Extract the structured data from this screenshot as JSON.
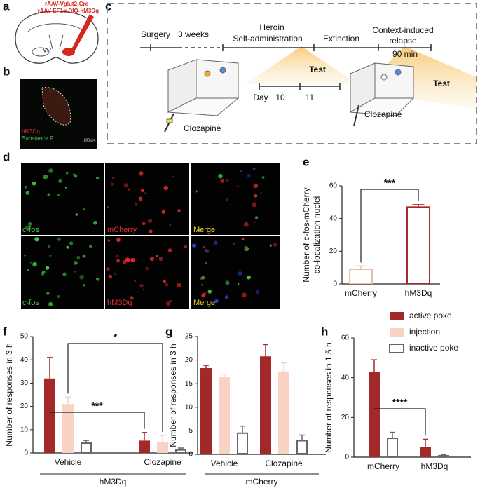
{
  "panel_labels": [
    "a",
    "b",
    "c",
    "d",
    "e",
    "f",
    "g",
    "h"
  ],
  "panel_a": {
    "virus": [
      "rAAV-Vglut2-Cre",
      "+rAAV-EF1α-DIO-hM3Dq"
    ],
    "region": "VP"
  },
  "panel_b": {
    "labels": [
      "hM3Dq",
      "Substance P"
    ],
    "scale": "200 μm"
  },
  "panel_c": {
    "timeline": [
      "Surgery",
      "3 weeks",
      "Heroin",
      "Self-administration",
      "Extinction",
      "Context-induced",
      "relapse",
      "90 min"
    ],
    "test_1": "Test",
    "day": "Day",
    "days": [
      "10",
      "11"
    ],
    "drug_1": "Clozapine",
    "test_2": "Test",
    "drug_2": "Clozapine"
  },
  "panel_d": {
    "rows": [
      [
        "c-fos",
        "mCherry",
        "Merge"
      ],
      [
        "c-fos",
        "hM3Dq",
        "Merge"
      ]
    ]
  },
  "chart_data": [
    {
      "type": "bar",
      "y_label": [
        "Number of c-fos-mCherry",
        "co-localization nuclei"
      ],
      "categories": [
        "mCherry",
        "hM3Dq"
      ],
      "values": [
        9,
        47
      ],
      "errors": [
        2,
        1.5
      ],
      "colors": [
        "#f0b9a4",
        "#a52a2a"
      ],
      "outline": true,
      "ylim": [
        0,
        60
      ],
      "yticks": [
        0,
        20,
        40,
        60
      ],
      "annotations": [
        "***"
      ]
    },
    {
      "type": "grouped_bar",
      "y_label": "Number of responses in 3 h",
      "x_label": "hM3Dq",
      "categories": [
        "Vehicle",
        "Clozapine"
      ],
      "series": [
        {
          "name": "active poke",
          "color": "#a3282a",
          "values": [
            32,
            5.3
          ],
          "errors": [
            9,
            3.5
          ]
        },
        {
          "name": "injection",
          "color": "#f8d3c4",
          "values": [
            21,
            4.5
          ],
          "errors": [
            3,
            3
          ]
        },
        {
          "name": "inactive poke",
          "color": "#666666",
          "outline": true,
          "values": [
            4.2,
            1.3
          ],
          "errors": [
            1.2,
            0.8
          ]
        }
      ],
      "ylim": [
        0,
        50
      ],
      "yticks": [
        0,
        10,
        20,
        30,
        40,
        50
      ],
      "annotations": [
        "***",
        "*"
      ]
    },
    {
      "type": "grouped_bar",
      "y_label": "Number of responses in 3 h",
      "x_label": "mCherry",
      "categories": [
        "Vehicle",
        "Clozapine"
      ],
      "series": [
        {
          "name": "active poke",
          "color": "#a3282a",
          "values": [
            18.3,
            20.8
          ],
          "errors": [
            0.6,
            2.5
          ]
        },
        {
          "name": "injection",
          "color": "#f8d3c4",
          "values": [
            16.5,
            17.6
          ],
          "errors": [
            0.5,
            1.8
          ]
        },
        {
          "name": "inactive poke",
          "color": "#666666",
          "outline": true,
          "values": [
            4.5,
            2.9
          ],
          "errors": [
            1.5,
            1.2
          ]
        }
      ],
      "ylim": [
        0,
        25
      ],
      "yticks": [
        0,
        5,
        10,
        15,
        20,
        25
      ]
    },
    {
      "type": "grouped_bar",
      "y_label": "Number of responses in 1.5 h",
      "categories": [
        "mCherry",
        "hM3Dq"
      ],
      "series": [
        {
          "name": "active poke",
          "color": "#a3282a",
          "values": [
            43,
            5
          ],
          "errors": [
            6,
            4
          ]
        },
        {
          "name": "inactive poke",
          "color": "#666666",
          "outline": true,
          "values": [
            9.5,
            0.7
          ],
          "errors": [
            3,
            0.5
          ]
        }
      ],
      "ylim": [
        0,
        60
      ],
      "yticks": [
        0,
        20,
        40,
        60
      ],
      "annotations": [
        "****"
      ]
    }
  ]
}
